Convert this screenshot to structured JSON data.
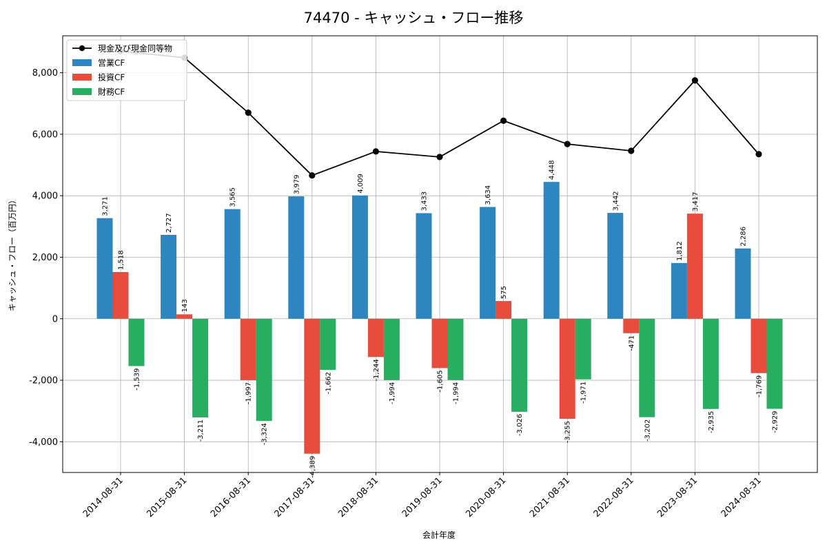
{
  "chart_data": {
    "type": "bar",
    "title": "74470 - キャッシュ・フロー推移",
    "xlabel": "会計年度",
    "ylabel": "キャッシュ・フロー（百万円）",
    "ylim": [
      -5000,
      9200
    ],
    "yticks": [
      -4000,
      -2000,
      0,
      2000,
      4000,
      6000,
      8000
    ],
    "ytick_labels": [
      "-4,000",
      "-2,000",
      "0",
      "2,000",
      "4,000",
      "6,000",
      "8,000"
    ],
    "grid": true,
    "legend_position": "top-left",
    "categories": [
      "2014-08-31",
      "2015-08-31",
      "2016-08-31",
      "2017-08-31",
      "2018-08-31",
      "2019-08-31",
      "2020-08-31",
      "2021-08-31",
      "2022-08-31",
      "2023-08-31",
      "2024-08-31"
    ],
    "series": [
      {
        "name": "営業CF",
        "kind": "bar",
        "color": "#2e86c1",
        "values": [
          3271,
          2727,
          3565,
          3979,
          4009,
          3433,
          3634,
          4448,
          3442,
          1812,
          2286
        ],
        "labels": [
          "3,271",
          "2,727",
          "3,565",
          "3,979",
          "4,009",
          "3,433",
          "3,634",
          "4,448",
          "3,442",
          "1,812",
          "2,286"
        ]
      },
      {
        "name": "投資CF",
        "kind": "bar",
        "color": "#e74c3c",
        "values": [
          1518,
          143,
          -1997,
          -4389,
          -1244,
          -1605,
          575,
          -3255,
          -471,
          3417,
          -1769
        ],
        "labels": [
          "1,518",
          "143",
          "-1,997",
          "-4,389",
          "-1,244",
          "-1,605",
          "575",
          "-3,255",
          "-471",
          "3,417",
          "-1,769"
        ]
      },
      {
        "name": "財務CF",
        "kind": "bar",
        "color": "#27ae60",
        "values": [
          -1539,
          -3211,
          -3324,
          -1662,
          -1994,
          -1994,
          -3026,
          -1971,
          -3202,
          -2935,
          -2929
        ],
        "labels": [
          "-1,539",
          "-3,211",
          "-3,324",
          "-1,662",
          "-1,994",
          "-1,994",
          "-3,026",
          "-1,971",
          "-3,202",
          "-2,935",
          "-2,929"
        ]
      },
      {
        "name": "現金及び現金同等物",
        "kind": "line",
        "color": "#000000",
        "values": [
          8700,
          8490,
          6700,
          4660,
          5440,
          5260,
          6440,
          5680,
          5460,
          7750,
          5350
        ]
      }
    ]
  }
}
